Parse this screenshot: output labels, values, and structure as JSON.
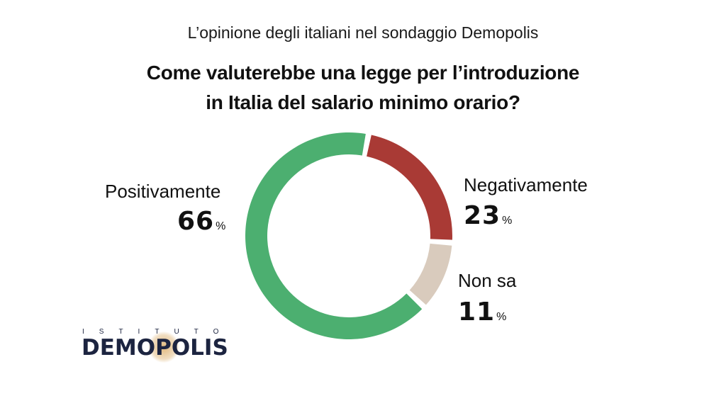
{
  "header": {
    "subtitle": "L’opinione degli italiani nel sondaggio Demopolis",
    "question_line1": "Come valuterebbe una legge per l’introduzione",
    "question_line2": "in Italia del salario minimo orario?"
  },
  "chart_data": {
    "type": "pie",
    "variant": "donut",
    "title": "Come valuterebbe una legge per l’introduzione in Italia del salario minimo orario?",
    "unit": "%",
    "slices": [
      {
        "label": "Negativamente",
        "value": 23,
        "color": "#a93a35"
      },
      {
        "label": "Non sa",
        "value": 11,
        "color": "#d9cbbd"
      },
      {
        "label": "Positivamente",
        "value": 66,
        "color": "#4caf70"
      }
    ]
  },
  "labels": {
    "positive": {
      "name": "Positivamente",
      "value": "66",
      "unit": "%"
    },
    "negative": {
      "name": "Negativamente",
      "value": "23",
      "unit": "%"
    },
    "unknown": {
      "name": "Non sa",
      "value": "11",
      "unit": "%"
    }
  },
  "logo": {
    "top_text": "ISTITUTO",
    "main_text": "DEMOPOLIS",
    "color": "#1c2440"
  }
}
